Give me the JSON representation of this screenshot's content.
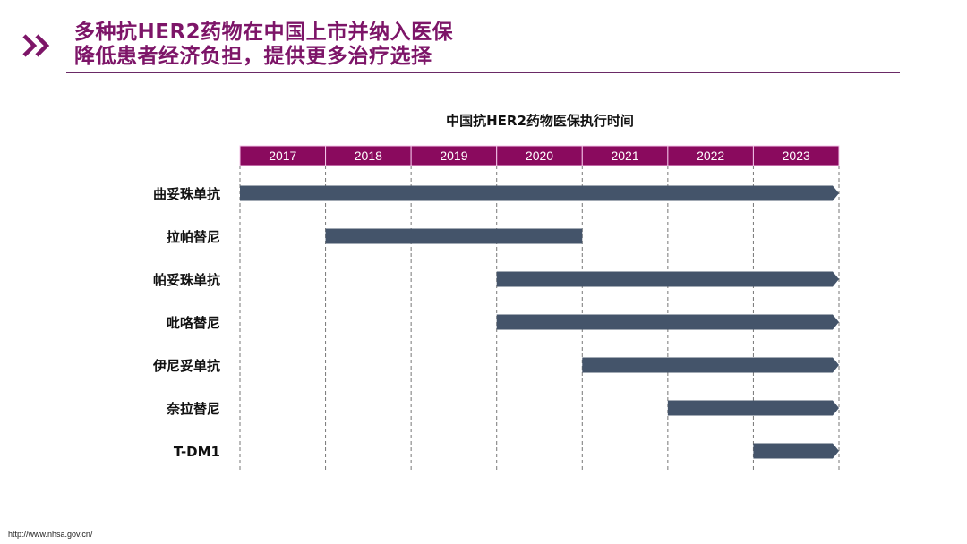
{
  "header": {
    "title_line1": "多种抗HER2药物在中国上市并纳入医保",
    "title_line2": "降低患者经济负担，提供更多治疗选择",
    "icon": "double-chevron-right-icon",
    "accent_color": "#7d1568"
  },
  "source": "http://www.nhsa.gov.cn/",
  "chart_data": {
    "type": "gantt",
    "title": "中国抗HER2药物医保执行时间",
    "years": [
      "2017",
      "2018",
      "2019",
      "2020",
      "2021",
      "2022",
      "2023"
    ],
    "x_range": [
      2017,
      2024
    ],
    "grid": "dashed-vertical",
    "header_color": "#8a0a5e",
    "bar_color": "#44546a",
    "series": [
      {
        "name": "曲妥珠单抗",
        "start": 2017,
        "end": 2024,
        "ongoing": true
      },
      {
        "name": "拉帕替尼",
        "start": 2018,
        "end": 2021,
        "ongoing": false
      },
      {
        "name": "帕妥珠单抗",
        "start": 2020,
        "end": 2024,
        "ongoing": true
      },
      {
        "name": "吡咯替尼",
        "start": 2020,
        "end": 2024,
        "ongoing": true
      },
      {
        "name": "伊尼妥单抗",
        "start": 2021,
        "end": 2024,
        "ongoing": true
      },
      {
        "name": "奈拉替尼",
        "start": 2022,
        "end": 2024,
        "ongoing": true
      },
      {
        "name": "T-DM1",
        "start": 2023,
        "end": 2024,
        "ongoing": true
      }
    ]
  }
}
